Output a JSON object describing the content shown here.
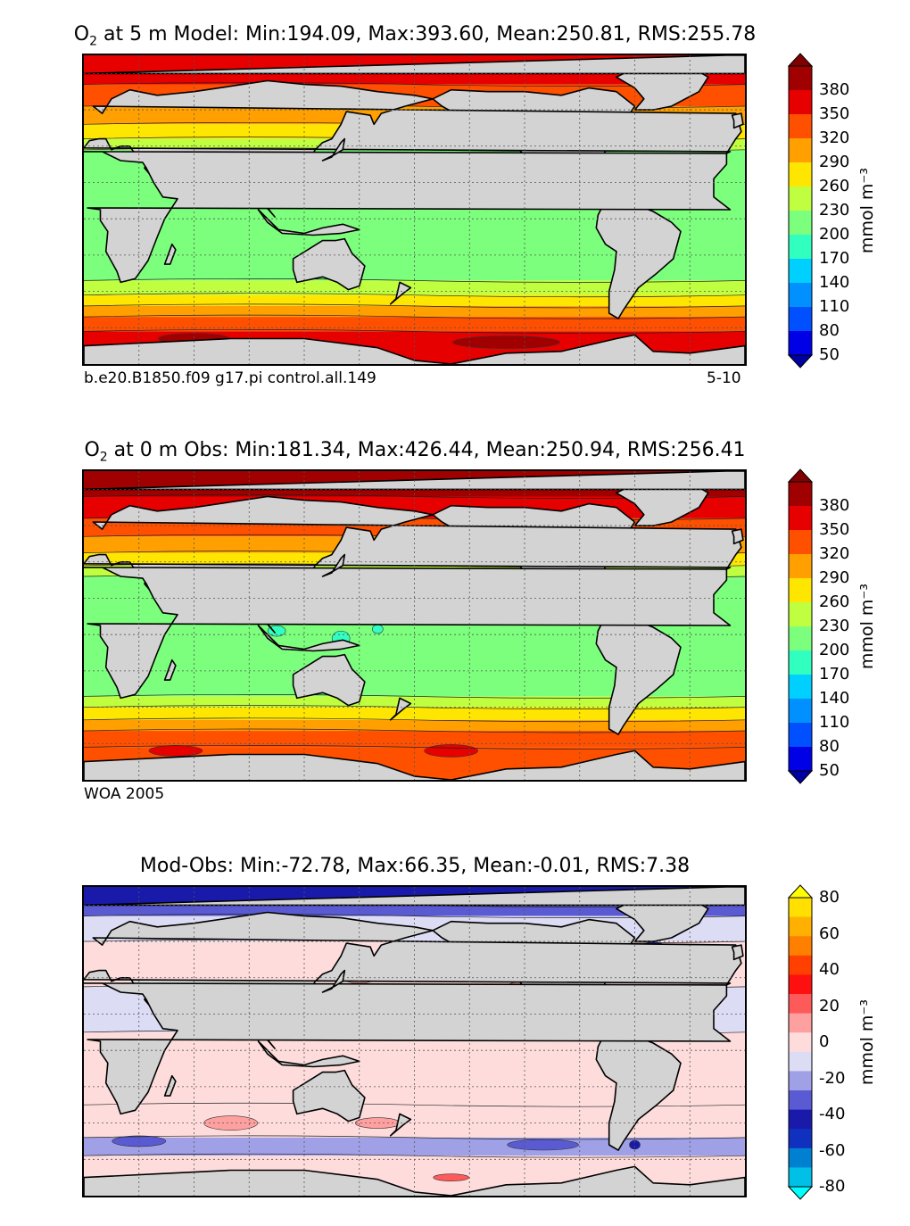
{
  "chart_data": [
    {
      "type": "heatmap",
      "title_prefix": "O",
      "title_sub": "2",
      "title": " at 5 m Model: Min:194.09, Max:393.60, Mean:250.81, RMS:255.78",
      "caption_left": "b.e20.B1850.f09 g17.pi control.all.149",
      "caption_right": "5-10",
      "colorbar_ticks": [
        "380",
        "350",
        "320",
        "290",
        "260",
        "230",
        "200",
        "170",
        "140",
        "110",
        "80",
        "50"
      ],
      "colorbar_label": "mmol m⁻³",
      "levels": [
        50,
        80,
        110,
        140,
        170,
        200,
        230,
        260,
        290,
        320,
        350,
        380
      ],
      "level_colors": [
        "#0000a0",
        "#0000e6",
        "#0050ff",
        "#0090ff",
        "#00d0ff",
        "#30ffc0",
        "#7cff7c",
        "#c0ff40",
        "#ffe600",
        "#ffa000",
        "#ff5000",
        "#e60000",
        "#800000"
      ],
      "colorbar_colors": [
        "#800000",
        "#a00000",
        "#e60000",
        "#ff5000",
        "#ffa000",
        "#ffe600",
        "#c0ff40",
        "#7cff7c",
        "#30ffc0",
        "#00d0ff",
        "#0090ff",
        "#0050ff",
        "#0000e6",
        "#0000a0"
      ],
      "x_range_deg": [
        0,
        360
      ],
      "y_range_deg": [
        -80,
        90
      ]
    },
    {
      "type": "heatmap",
      "title_prefix": "O",
      "title_sub": "2",
      "title": " at 0 m Obs: Min:181.34, Max:426.44, Mean:250.94, RMS:256.41",
      "caption_left": "WOA 2005",
      "caption_right": "",
      "colorbar_ticks": [
        "380",
        "350",
        "320",
        "290",
        "260",
        "230",
        "200",
        "170",
        "140",
        "110",
        "80",
        "50"
      ],
      "colorbar_label": "mmol m⁻³",
      "levels": [
        50,
        80,
        110,
        140,
        170,
        200,
        230,
        260,
        290,
        320,
        350,
        380
      ],
      "colorbar_colors": [
        "#800000",
        "#a00000",
        "#e60000",
        "#ff5000",
        "#ffa000",
        "#ffe600",
        "#c0ff40",
        "#7cff7c",
        "#30ffc0",
        "#00d0ff",
        "#0090ff",
        "#0050ff",
        "#0000e6",
        "#0000a0"
      ],
      "x_range_deg": [
        0,
        360
      ],
      "y_range_deg": [
        -80,
        90
      ]
    },
    {
      "type": "heatmap",
      "title_prefix": "",
      "title_sub": "",
      "title": "Mod-Obs: Min:-72.78, Max:66.35, Mean:-0.01, RMS:7.38",
      "caption_left": "",
      "caption_right": "",
      "colorbar_ticks": [
        "80",
        "60",
        "40",
        "20",
        "0",
        "-20",
        "-40",
        "-60",
        "-80"
      ],
      "colorbar_label": "mmol m⁻³",
      "levels": [
        -80,
        -70,
        -60,
        -50,
        -40,
        -30,
        -20,
        -10,
        0,
        10,
        20,
        30,
        40,
        50,
        60,
        70,
        80
      ],
      "colorbar_colors": [
        "#ffff00",
        "#ffe000",
        "#ffb000",
        "#ff8000",
        "#ff4000",
        "#ff1010",
        "#ff5a5a",
        "#ffa0a0",
        "#ffdcdc",
        "#dcdcf5",
        "#a0a0e6",
        "#5a5ad2",
        "#1a1aaa",
        "#1030c0",
        "#0080d0",
        "#00c0e8",
        "#00ffff"
      ],
      "x_range_deg": [
        0,
        360
      ],
      "y_range_deg": [
        -80,
        90
      ]
    }
  ],
  "colors": {
    "land": "#d3d3d3",
    "coast": "#000000",
    "grid": "#555555"
  }
}
